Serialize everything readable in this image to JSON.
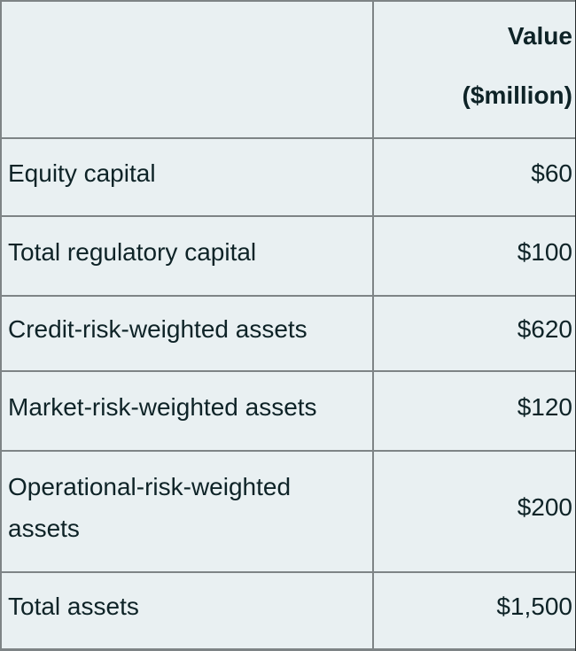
{
  "table": {
    "header": {
      "col1": "",
      "col2_line1": "Value",
      "col2_line2": "($million)"
    },
    "rows": [
      {
        "label": "Equity capital",
        "value": "$60"
      },
      {
        "label": "Total regulatory capital",
        "value": "$100"
      },
      {
        "label": "Credit-risk-weighted assets",
        "value": "$620"
      },
      {
        "label": "Market-risk-weighted assets",
        "value": "$120"
      },
      {
        "label": "Operational-risk-weighted assets",
        "value": "$200"
      },
      {
        "label": "Total assets",
        "value": "$1,500"
      }
    ]
  },
  "chart_data": {
    "type": "table",
    "columns": [
      "",
      "Value ($million)"
    ],
    "rows": [
      [
        "Equity capital",
        60
      ],
      [
        "Total regulatory capital",
        100
      ],
      [
        "Credit-risk-weighted assets",
        620
      ],
      [
        "Market-risk-weighted assets",
        120
      ],
      [
        "Operational-risk-weighted assets",
        200
      ],
      [
        "Total assets",
        1500
      ]
    ]
  },
  "colors": {
    "cell_background": "#e9f0f2",
    "grid_border": "#7e8486",
    "right_edge_border": "#262c2e",
    "text": "#0e2327",
    "page_background": "#f1f5f6"
  }
}
